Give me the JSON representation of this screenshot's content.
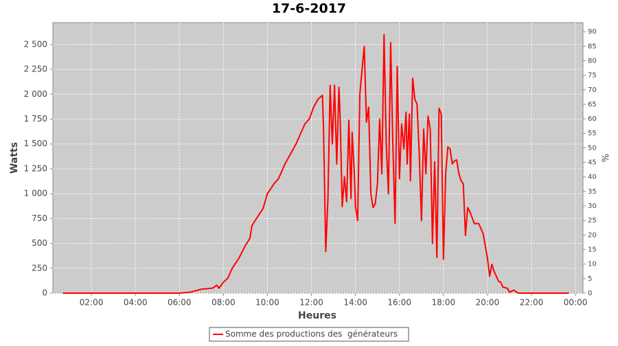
{
  "chart_data": {
    "type": "line",
    "title": "17-6-2017",
    "x_label": "Heures",
    "y_label": "Watts",
    "y2_label": "%",
    "x": [
      0.7,
      1.5,
      2.5,
      3.5,
      4.5,
      5.5,
      6.0,
      6.5,
      7.0,
      7.5,
      7.7,
      7.8,
      8.0,
      8.2,
      8.4,
      8.7,
      9.0,
      9.2,
      9.3,
      9.5,
      9.8,
      10.0,
      10.3,
      10.5,
      10.6,
      10.8,
      11.0,
      11.3,
      11.5,
      11.7,
      11.9,
      12.1,
      12.3,
      12.5,
      12.55,
      12.65,
      12.75,
      12.85,
      12.95,
      13.05,
      13.15,
      13.25,
      13.3,
      13.4,
      13.5,
      13.6,
      13.7,
      13.8,
      13.85,
      13.95,
      14.0,
      14.1,
      14.2,
      14.3,
      14.4,
      14.5,
      14.6,
      14.7,
      14.8,
      14.9,
      15.0,
      15.1,
      15.2,
      15.3,
      15.4,
      15.5,
      15.6,
      15.7,
      15.8,
      15.9,
      16.0,
      16.1,
      16.2,
      16.3,
      16.35,
      16.45,
      16.5,
      16.6,
      16.7,
      16.8,
      16.9,
      17.0,
      17.1,
      17.2,
      17.3,
      17.4,
      17.5,
      17.6,
      17.7,
      17.8,
      17.9,
      18.0,
      18.1,
      18.2,
      18.3,
      18.4,
      18.5,
      18.6,
      18.7,
      18.8,
      18.9,
      19.0,
      19.1,
      19.2,
      19.4,
      19.6,
      19.8,
      20.0,
      20.1,
      20.2,
      20.3,
      20.5,
      20.6,
      20.7,
      20.9,
      21.0,
      21.2,
      21.4,
      22.0,
      23.7
    ],
    "series": [
      {
        "name": "Somme des productions des  générateurs",
        "color": "#ff0000",
        "values": [
          0,
          0,
          0,
          0,
          0,
          0,
          0,
          10,
          40,
          50,
          80,
          50,
          110,
          150,
          250,
          350,
          480,
          550,
          680,
          750,
          850,
          1000,
          1100,
          1150,
          1200,
          1300,
          1380,
          1500,
          1600,
          1700,
          1750,
          1870,
          1950,
          1990,
          1650,
          420,
          950,
          2090,
          1500,
          2090,
          1300,
          2070,
          1800,
          870,
          1170,
          920,
          1740,
          950,
          1620,
          1200,
          870,
          730,
          2000,
          2250,
          2480,
          1720,
          1870,
          1000,
          860,
          900,
          1100,
          1750,
          1200,
          2600,
          1500,
          1000,
          2520,
          1500,
          700,
          2280,
          1150,
          1700,
          1450,
          1820,
          1300,
          1800,
          1130,
          2160,
          1950,
          1900,
          1400,
          730,
          1650,
          1200,
          1780,
          1650,
          500,
          1320,
          360,
          1860,
          1800,
          340,
          1200,
          1470,
          1450,
          1300,
          1330,
          1340,
          1200,
          1130,
          1100,
          580,
          860,
          820,
          700,
          700,
          600,
          350,
          170,
          290,
          220,
          120,
          110,
          60,
          50,
          10,
          30,
          0,
          0,
          0
        ]
      }
    ],
    "xlim": [
      0.25,
      24.34
    ],
    "xticks": [
      {
        "value": 2,
        "label": "02:00"
      },
      {
        "value": 4,
        "label": "04:00"
      },
      {
        "value": 6,
        "label": "06:00"
      },
      {
        "value": 8,
        "label": "08:00"
      },
      {
        "value": 10,
        "label": "10:00"
      },
      {
        "value": 12,
        "label": "12:00"
      },
      {
        "value": 14,
        "label": "14:00"
      },
      {
        "value": 16,
        "label": "16:00"
      },
      {
        "value": 18,
        "label": "18:00"
      },
      {
        "value": 20,
        "label": "20:00"
      },
      {
        "value": 22,
        "label": "22:00"
      },
      {
        "value": 24,
        "label": "00:00"
      }
    ],
    "ylim": [
      0,
      2720
    ],
    "yticks": [
      0,
      250,
      500,
      750,
      {
        "value": 1000,
        "label": "1 000"
      },
      {
        "value": 1250,
        "label": "1 250"
      },
      {
        "value": 1500,
        "label": "1 500"
      },
      {
        "value": 1750,
        "label": "1 750"
      },
      {
        "value": 2000,
        "label": "2 000"
      },
      {
        "value": 2250,
        "label": "2 250"
      },
      {
        "value": 2500,
        "label": "2 500"
      }
    ],
    "y2lim": [
      0,
      93.1
    ],
    "y2ticks": [
      0,
      5,
      10,
      15,
      20,
      25,
      30,
      35,
      40,
      45,
      50,
      55,
      60,
      65,
      70,
      75,
      80,
      85,
      90
    ],
    "grid": true
  }
}
